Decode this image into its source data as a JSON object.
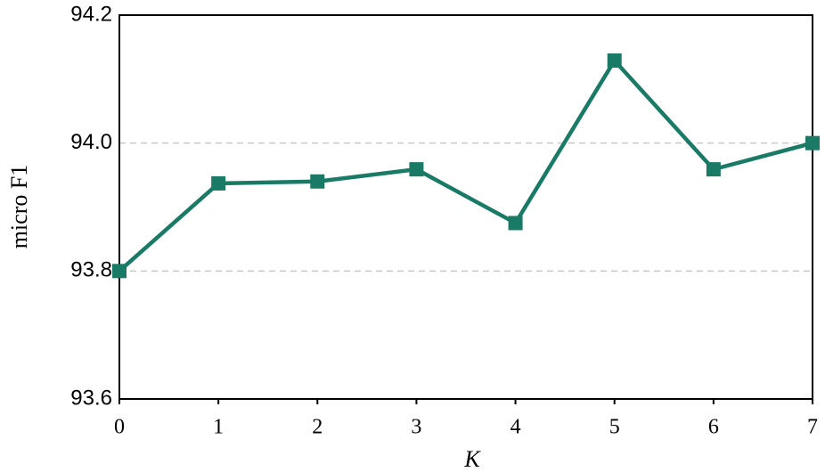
{
  "chart_data": {
    "type": "line",
    "x_label": "K",
    "y_label": "micro F1",
    "x": [
      0,
      1,
      2,
      3,
      4,
      5,
      6,
      7
    ],
    "series": [
      {
        "name": "micro F1",
        "color": "#197a66",
        "values": [
          93.8,
          93.937,
          93.94,
          93.959,
          93.875,
          94.129,
          93.959,
          94.0
        ]
      }
    ],
    "xlim": [
      0,
      7
    ],
    "xticks": [
      0,
      1,
      2,
      3,
      4,
      5,
      6,
      7
    ],
    "ylim": [
      93.6,
      94.2
    ],
    "yticks": [
      93.6,
      93.8,
      {
        "value": 94,
        "label": "94.0"
      },
      94.2
    ],
    "grid": true
  }
}
